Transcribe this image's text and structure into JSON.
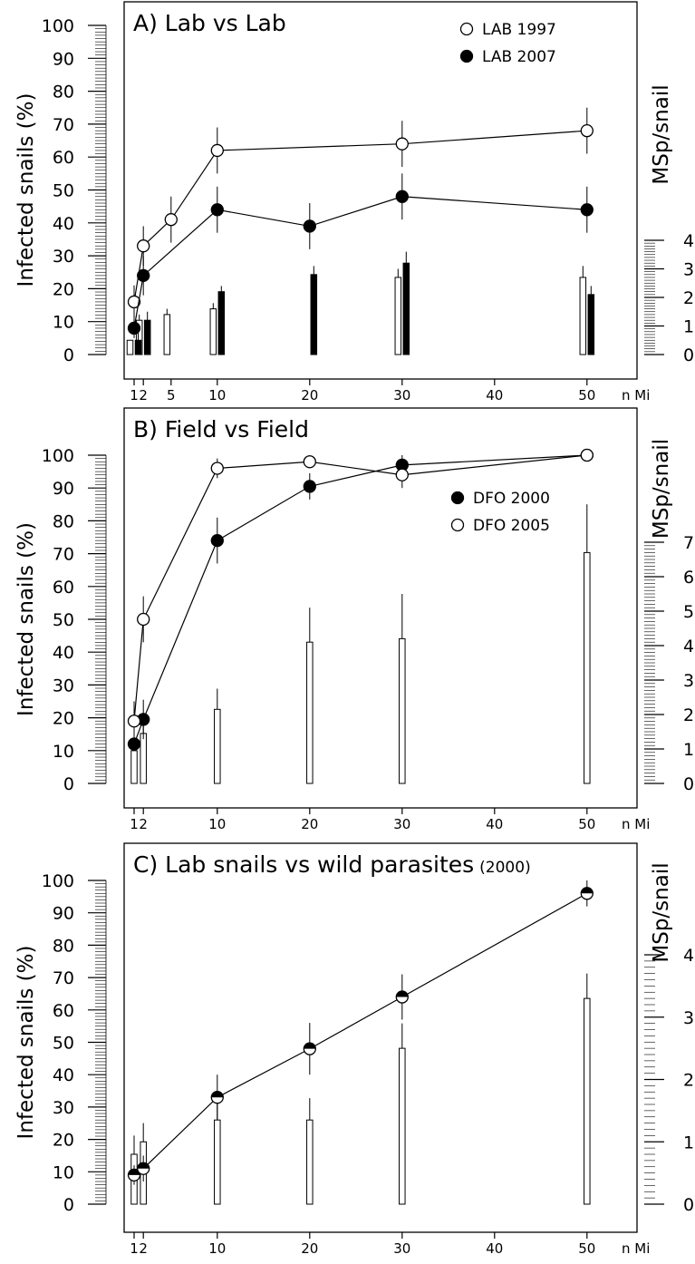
{
  "chart_data": [
    {
      "type": "line",
      "panel": "A",
      "title": "A) Lab vs Lab",
      "title_suffix": "",
      "ylabel": "Infected snails (%)",
      "y2label": "MSp/snail",
      "xlabel": "n Mi",
      "ylim": [
        0,
        100
      ],
      "y2lim": [
        0,
        4
      ],
      "yticks": [
        0,
        10,
        20,
        30,
        40,
        50,
        60,
        70,
        80,
        90,
        100
      ],
      "y2ticks": [
        0,
        1,
        2,
        3,
        4
      ],
      "xticks": [
        1,
        2,
        5,
        10,
        20,
        30,
        40,
        50
      ],
      "legend_position": "top-right",
      "grid": false,
      "series": [
        {
          "name": "LAB 1997",
          "marker": "open",
          "x": [
            1,
            2,
            5,
            10,
            30,
            50
          ],
          "y": [
            16,
            33,
            41,
            62,
            64,
            68
          ],
          "err": [
            5,
            6,
            7,
            7,
            7,
            7
          ]
        },
        {
          "name": "LAB 2007",
          "marker": "filled",
          "x": [
            1,
            2,
            10,
            20,
            30,
            50
          ],
          "y": [
            8,
            24,
            44,
            39,
            48,
            44
          ],
          "err": [
            3,
            6,
            7,
            7,
            7,
            7
          ]
        }
      ],
      "bars": [
        {
          "fill": "open",
          "x": [
            1,
            2,
            5,
            10,
            30,
            50
          ],
          "values": [
            0.5,
            1.2,
            1.4,
            1.6,
            2.7,
            2.7
          ],
          "err": [
            0,
            0.2,
            0.2,
            0.2,
            0.3,
            0.4
          ]
        },
        {
          "fill": "filled",
          "x": [
            1,
            2,
            10,
            20,
            30,
            50
          ],
          "values": [
            0.5,
            1.2,
            2.2,
            2.8,
            3.2,
            2.1
          ],
          "err": [
            0.3,
            0.3,
            0.2,
            0.3,
            0.4,
            0.3
          ]
        }
      ]
    },
    {
      "type": "line",
      "panel": "B",
      "title": "B) Field vs Field",
      "title_suffix": "",
      "ylabel": "Infected snails (%)",
      "y2label": "MSp/snail",
      "xlabel": "n Mi",
      "ylim": [
        0,
        100
      ],
      "y2lim": [
        0,
        7
      ],
      "yticks": [
        0,
        10,
        20,
        30,
        40,
        50,
        60,
        70,
        80,
        90,
        100
      ],
      "y2ticks": [
        0,
        1,
        2,
        3,
        4,
        5,
        6,
        7
      ],
      "xticks": [
        1,
        2,
        10,
        20,
        30,
        40,
        50
      ],
      "legend_position": "center-right",
      "grid": false,
      "series": [
        {
          "name": "DFO 2000",
          "marker": "filled",
          "x": [
            1,
            2,
            10,
            20,
            30,
            50
          ],
          "y": [
            12,
            19.5,
            74,
            90.5,
            97,
            100
          ],
          "err": [
            0,
            6,
            7,
            4,
            3,
            0
          ]
        },
        {
          "name": "DFO 2005",
          "marker": "open",
          "x": [
            1,
            2,
            10,
            20,
            30,
            50
          ],
          "y": [
            19,
            50,
            96,
            98,
            94,
            100
          ],
          "err": [
            6,
            7,
            3,
            2,
            4,
            0
          ]
        }
      ],
      "bars": [
        {
          "fill": "open",
          "x": [
            1,
            2,
            10,
            20,
            30,
            50
          ],
          "values": [
            0.95,
            1.45,
            2.15,
            4.1,
            4.2,
            6.7
          ],
          "err": [
            0.5,
            0.5,
            0.6,
            1.0,
            1.3,
            1.4
          ]
        }
      ]
    },
    {
      "type": "line",
      "panel": "C",
      "title": "C) Lab snails vs wild parasites",
      "title_suffix": "(2000)",
      "ylabel": "Infected snails (%)",
      "y2label": "MSp/snail",
      "xlabel": "n Mi",
      "ylim": [
        0,
        100
      ],
      "y2lim": [
        0,
        4
      ],
      "yticks": [
        0,
        10,
        20,
        30,
        40,
        50,
        60,
        70,
        80,
        90,
        100
      ],
      "y2ticks": [
        0,
        1,
        2,
        3,
        4
      ],
      "xticks": [
        1,
        2,
        10,
        20,
        30,
        40,
        50
      ],
      "legend_position": "",
      "grid": false,
      "series": [
        {
          "name": "",
          "marker": "half",
          "x": [
            1,
            2,
            10,
            20,
            30,
            50
          ],
          "y": [
            9,
            11,
            33,
            48,
            64,
            96
          ],
          "err": [
            3,
            4,
            7,
            8,
            7,
            4
          ]
        }
      ],
      "bars": [
        {
          "fill": "open",
          "x": [
            1,
            2,
            10,
            20,
            30,
            50
          ],
          "values": [
            0.8,
            1.0,
            1.35,
            1.35,
            2.5,
            3.3
          ],
          "err": [
            0.3,
            0.3,
            0.35,
            0.35,
            0.4,
            0.4
          ]
        }
      ]
    }
  ]
}
